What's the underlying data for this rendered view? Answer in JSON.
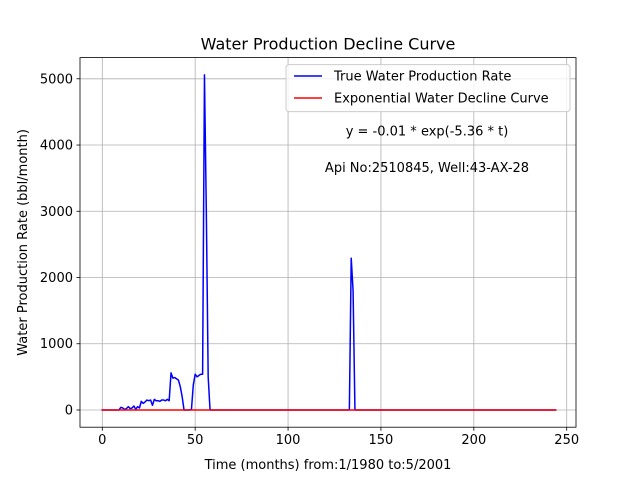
{
  "chart_data": {
    "type": "line",
    "title": "Water Production Decline Curve",
    "xlabel": "Time (months) from:1/1980 to:5/2001",
    "ylabel": "Water Production Rate (bbl/month)",
    "xlim": [
      -12,
      255
    ],
    "ylim": [
      -260,
      5320
    ],
    "xticks": [
      0,
      50,
      100,
      150,
      200,
      250
    ],
    "yticks": [
      0,
      1000,
      2000,
      3000,
      4000,
      5000
    ],
    "grid": true,
    "legend_position": "top-right",
    "annotations": [
      "y = -0.01 * exp(-5.36 * t)",
      "Api No:2510845, Well:43-AX-28"
    ],
    "series": [
      {
        "name": "True Water Production Rate",
        "color": "#0000ff",
        "points": [
          [
            0,
            0
          ],
          [
            9,
            0
          ],
          [
            10,
            40
          ],
          [
            11,
            30
          ],
          [
            12,
            10
          ],
          [
            13,
            20
          ],
          [
            14,
            50
          ],
          [
            15,
            20
          ],
          [
            16,
            30
          ],
          [
            17,
            60
          ],
          [
            18,
            10
          ],
          [
            19,
            50
          ],
          [
            20,
            30
          ],
          [
            21,
            130
          ],
          [
            22,
            100
          ],
          [
            23,
            120
          ],
          [
            24,
            150
          ],
          [
            25,
            140
          ],
          [
            26,
            150
          ],
          [
            27,
            70
          ],
          [
            28,
            160
          ],
          [
            29,
            140
          ],
          [
            30,
            140
          ],
          [
            31,
            130
          ],
          [
            32,
            150
          ],
          [
            33,
            150
          ],
          [
            34,
            140
          ],
          [
            35,
            160
          ],
          [
            36,
            140
          ],
          [
            37,
            560
          ],
          [
            38,
            480
          ],
          [
            39,
            490
          ],
          [
            40,
            470
          ],
          [
            41,
            450
          ],
          [
            42,
            350
          ],
          [
            43,
            200
          ],
          [
            44,
            0
          ],
          [
            45,
            0
          ],
          [
            47,
            0
          ],
          [
            48,
            10
          ],
          [
            49,
            380
          ],
          [
            50,
            540
          ],
          [
            51,
            500
          ],
          [
            52,
            520
          ],
          [
            53,
            540
          ],
          [
            54,
            540
          ],
          [
            55,
            5060
          ],
          [
            56,
            3000
          ],
          [
            57,
            500
          ],
          [
            58,
            0
          ],
          [
            100,
            0
          ],
          [
            132,
            0
          ],
          [
            133,
            0
          ],
          [
            134,
            2290
          ],
          [
            135,
            1800
          ],
          [
            136,
            0
          ],
          [
            137,
            0
          ],
          [
            200,
            0
          ],
          [
            244,
            0
          ]
        ]
      },
      {
        "name": "Exponential Water Decline Curve",
        "color": "#ff0000",
        "points": [
          [
            0,
            0
          ],
          [
            244,
            0
          ]
        ]
      }
    ]
  }
}
